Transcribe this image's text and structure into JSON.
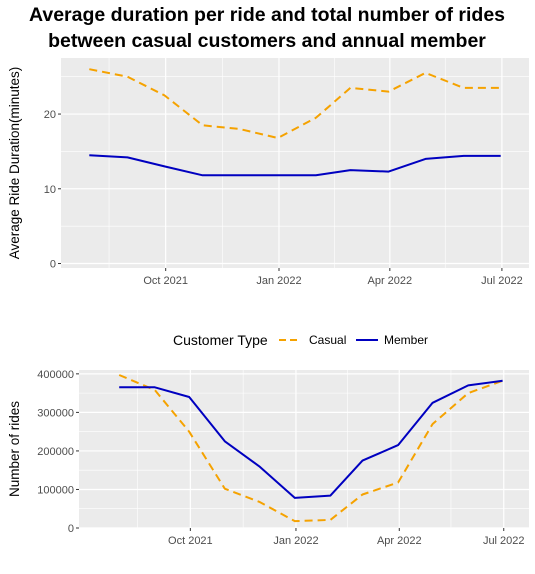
{
  "title_line1": "Average duration per ride and total number of rides",
  "title_line2": "between casual customers and annual member",
  "legend": {
    "title": "Customer Type",
    "entries": [
      {
        "name": "Casual",
        "color": "#f5a200",
        "dash": "dashed"
      },
      {
        "name": "Member",
        "color": "#0000c0",
        "dash": "solid"
      }
    ]
  },
  "chart_data": [
    {
      "type": "line",
      "title": "",
      "xlabel": "",
      "ylabel": "Average Ride Duration(minutes)",
      "x": [
        "2021-07-31",
        "2021-08-31",
        "2021-09-30",
        "2021-10-31",
        "2021-11-30",
        "2021-12-31",
        "2022-01-31",
        "2022-02-28",
        "2022-03-31",
        "2022-04-30",
        "2022-05-31",
        "2022-06-30"
      ],
      "x_tick_labels": [
        "Oct 2021",
        "Jan 2022",
        "Apr 2022",
        "Jul 2022"
      ],
      "x_tick_dates": [
        "2021-10-01",
        "2022-01-01",
        "2022-04-01",
        "2022-07-01"
      ],
      "y_ticks": [
        0,
        10,
        20
      ],
      "ylim": [
        -0.6,
        27.5
      ],
      "grid": true,
      "series": [
        {
          "name": "Casual",
          "values": [
            26.0,
            25.0,
            22.5,
            18.5,
            18.0,
            16.8,
            19.5,
            23.5,
            23.0,
            25.5,
            23.5,
            23.5
          ]
        },
        {
          "name": "Member",
          "values": [
            14.5,
            14.2,
            13.0,
            11.8,
            11.8,
            11.8,
            11.8,
            12.5,
            12.3,
            14.0,
            14.4,
            14.4
          ]
        }
      ]
    },
    {
      "type": "line",
      "title": "",
      "xlabel": "",
      "ylabel": "Number of rides",
      "x": [
        "2021-07-31",
        "2021-08-31",
        "2021-09-30",
        "2021-10-31",
        "2021-11-30",
        "2021-12-31",
        "2022-01-31",
        "2022-02-28",
        "2022-03-31",
        "2022-04-30",
        "2022-05-31",
        "2022-06-30"
      ],
      "x_tick_labels": [
        "Oct 2021",
        "Jan 2022",
        "Apr 2022",
        "Jul 2022"
      ],
      "x_tick_dates": [
        "2021-10-01",
        "2022-01-01",
        "2022-04-01",
        "2022-07-01"
      ],
      "y_ticks": [
        0,
        100000,
        200000,
        300000,
        400000
      ],
      "y_tick_labels": [
        "0",
        "100000",
        "200000",
        "300000",
        "400000"
      ],
      "ylim": [
        0,
        410000
      ],
      "grid": true,
      "series": [
        {
          "name": "Casual",
          "values": [
            397000,
            358000,
            250000,
            102000,
            68000,
            18000,
            21000,
            87000,
            118000,
            270000,
            350000,
            382000
          ]
        },
        {
          "name": "Member",
          "values": [
            365000,
            365000,
            340000,
            225000,
            160000,
            78000,
            84000,
            175000,
            215000,
            325000,
            370000,
            382000
          ]
        }
      ]
    }
  ]
}
